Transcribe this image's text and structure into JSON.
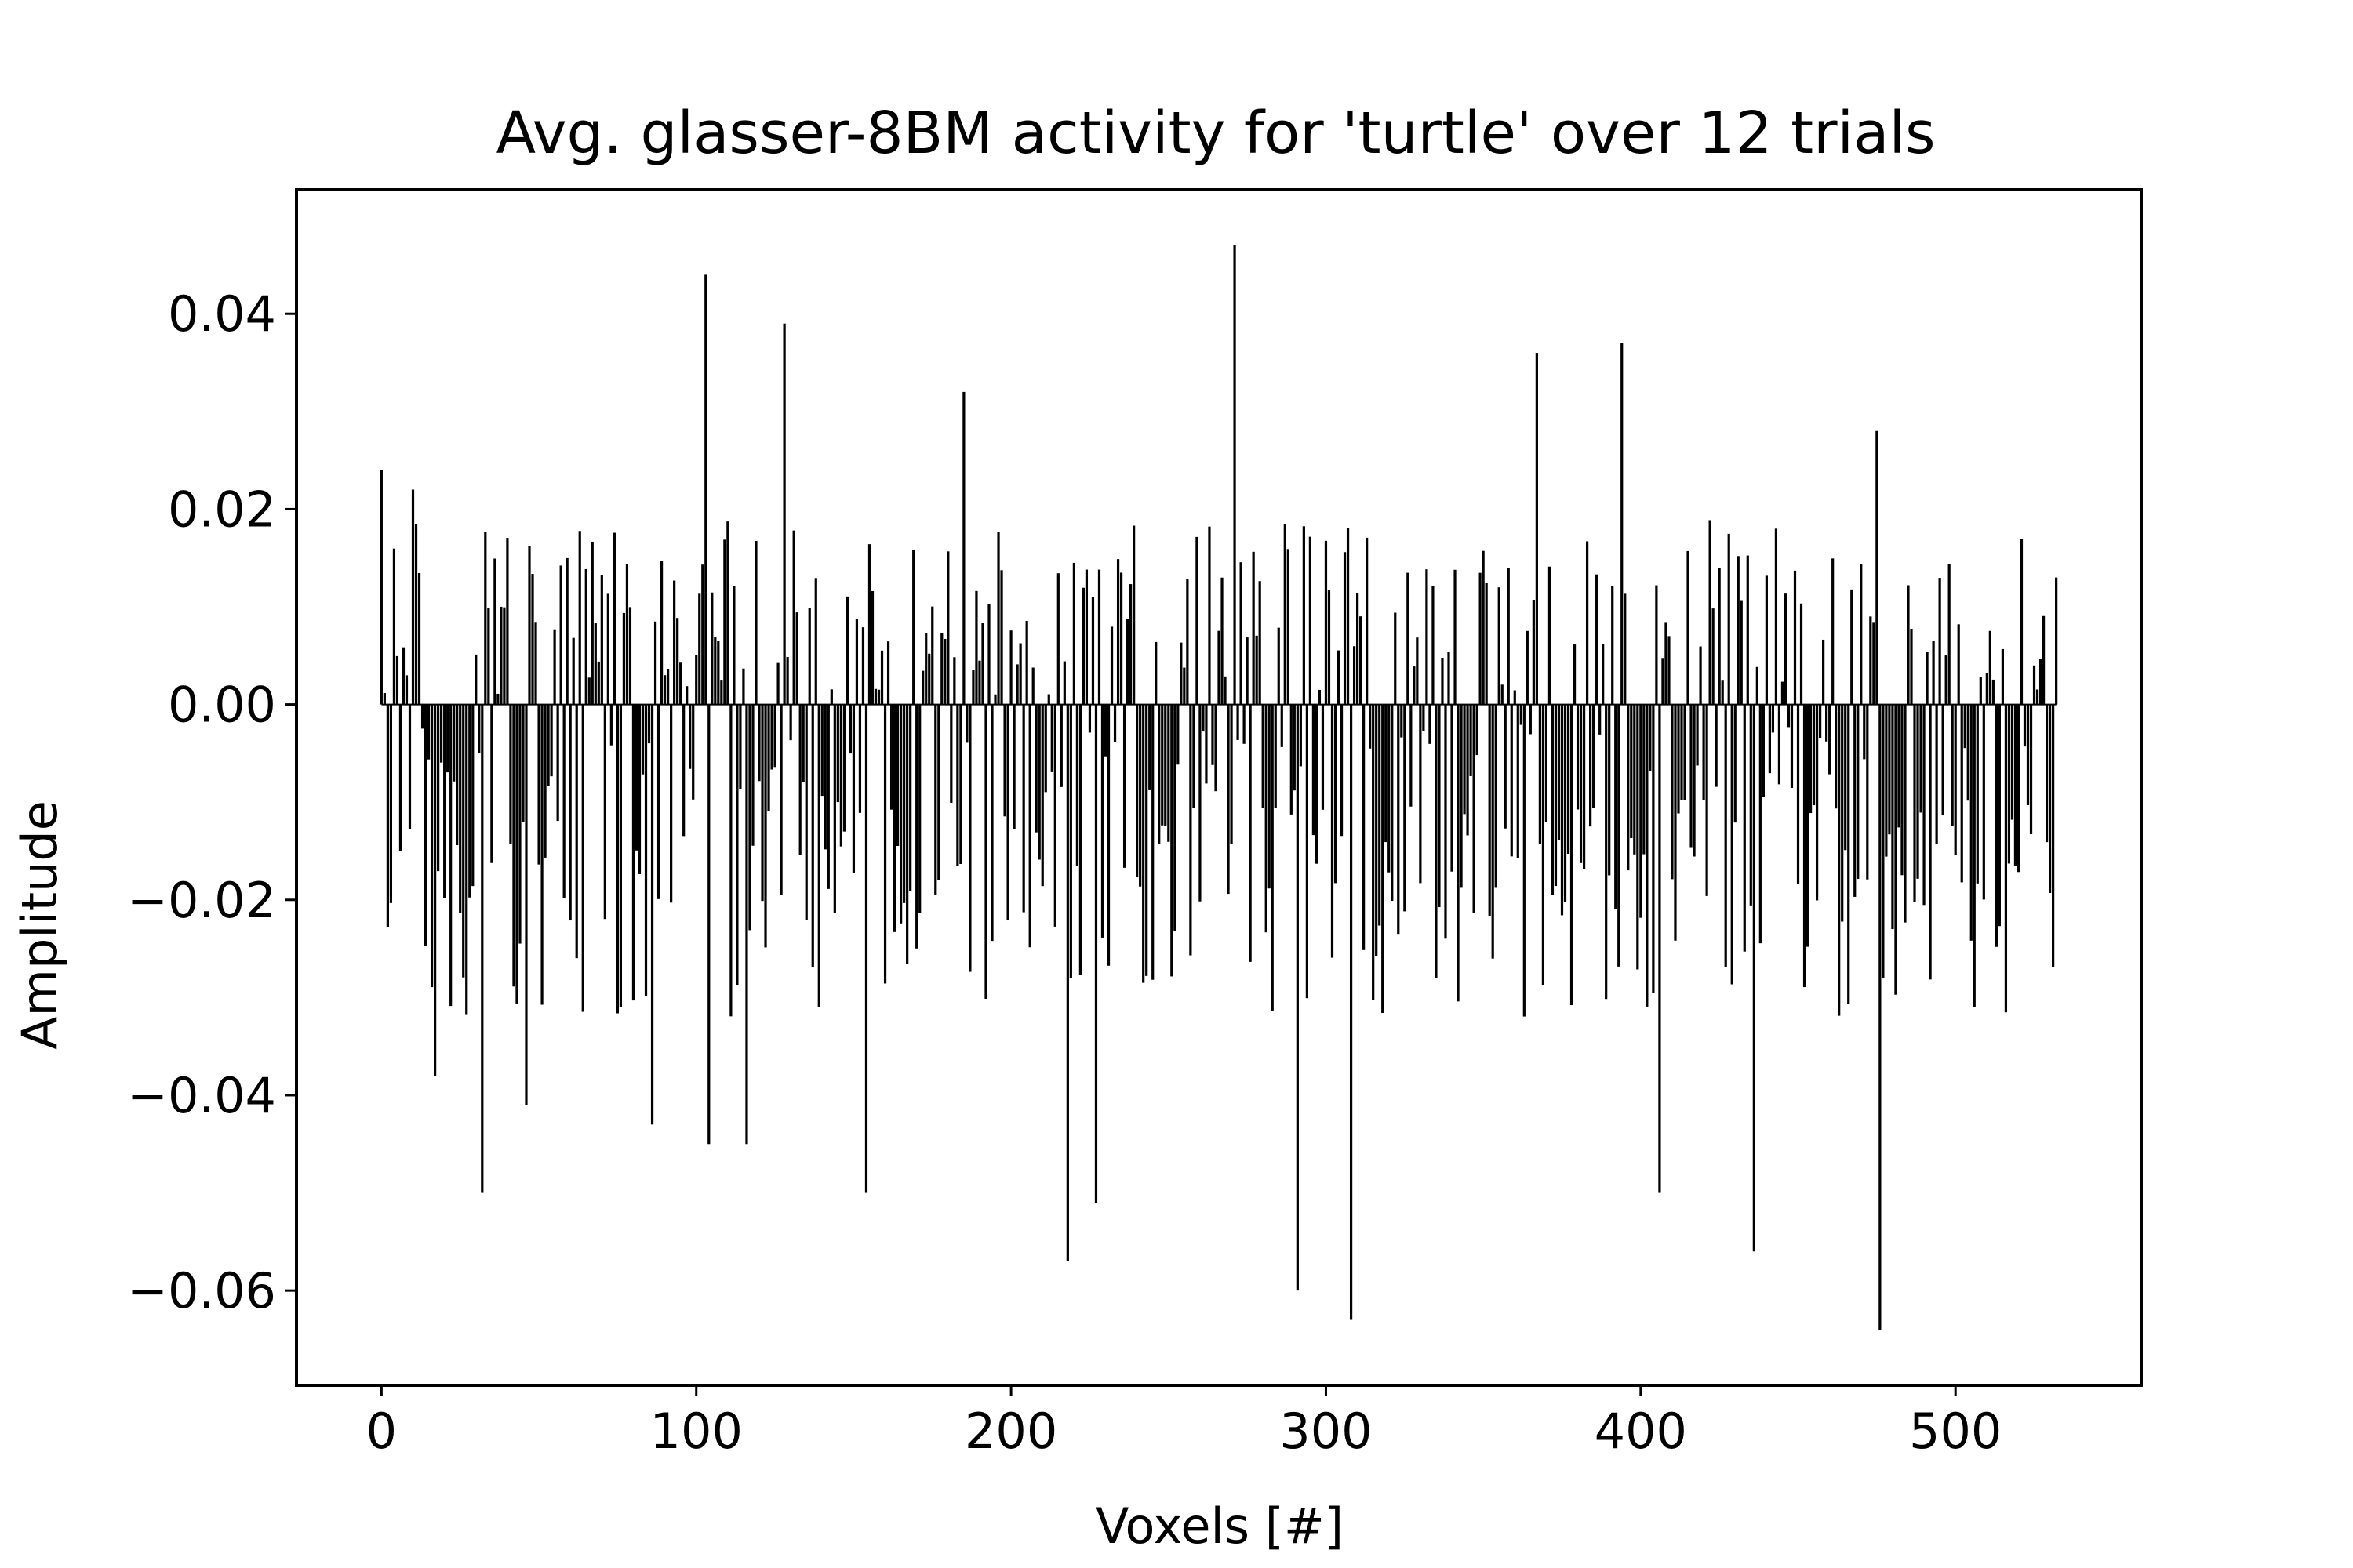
{
  "chart_data": {
    "type": "bar",
    "title": "Avg. glasser-8BM activity for 'turtle' over 12 trials",
    "xlabel": "Voxels [#]",
    "ylabel": "Amplitude",
    "xlim": [
      -27,
      559
    ],
    "ylim": [
      -0.0697,
      0.0527
    ],
    "xticks": [
      0,
      100,
      200,
      300,
      400,
      500
    ],
    "xtick_labels": [
      "0",
      "100",
      "200",
      "300",
      "400",
      "500"
    ],
    "yticks": [
      -0.06,
      -0.04,
      -0.02,
      0.0,
      0.02,
      0.04
    ],
    "ytick_labels": [
      "−0.06",
      "−0.04",
      "−0.02",
      "0.00",
      "0.02",
      "0.04"
    ],
    "grid": false,
    "bar_color": "#000000",
    "n_bars": 533,
    "peak_values": [
      {
        "x": 0,
        "y": 0.024
      },
      {
        "x": 10,
        "y": 0.022
      },
      {
        "x": 17,
        "y": -0.038
      },
      {
        "x": 32,
        "y": -0.05
      },
      {
        "x": 46,
        "y": -0.041
      },
      {
        "x": 86,
        "y": -0.043
      },
      {
        "x": 103,
        "y": 0.044
      },
      {
        "x": 104,
        "y": -0.045
      },
      {
        "x": 116,
        "y": -0.045
      },
      {
        "x": 128,
        "y": 0.039
      },
      {
        "x": 154,
        "y": -0.05
      },
      {
        "x": 185,
        "y": 0.032
      },
      {
        "x": 218,
        "y": -0.057
      },
      {
        "x": 227,
        "y": -0.051
      },
      {
        "x": 271,
        "y": 0.047
      },
      {
        "x": 291,
        "y": -0.06
      },
      {
        "x": 308,
        "y": -0.063
      },
      {
        "x": 367,
        "y": 0.036
      },
      {
        "x": 394,
        "y": 0.037
      },
      {
        "x": 406,
        "y": -0.05
      },
      {
        "x": 436,
        "y": -0.056
      },
      {
        "x": 475,
        "y": 0.028
      },
      {
        "x": 476,
        "y": -0.064
      },
      {
        "x": 532,
        "y": 0.013
      }
    ]
  }
}
